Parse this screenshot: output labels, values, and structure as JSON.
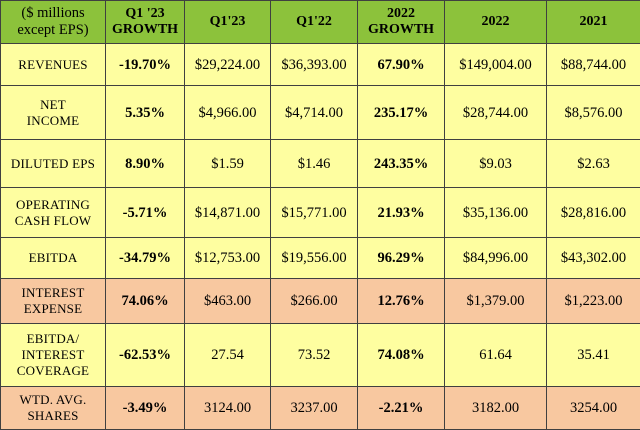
{
  "header": {
    "label_line1": "($ millions",
    "label_line2": "except EPS)",
    "columns": [
      {
        "line1": "Q1 '23",
        "line2": "GROWTH"
      },
      {
        "line1": "Q1'23",
        "line2": ""
      },
      {
        "line1": "Q1'22",
        "line2": ""
      },
      {
        "line1": "2022",
        "line2": "GROWTH"
      },
      {
        "line1": "2022",
        "line2": ""
      },
      {
        "line1": "2021",
        "line2": ""
      }
    ]
  },
  "rows": [
    {
      "label1": "REVENUES",
      "label2": "",
      "q1_23_growth": "-19.70%",
      "q1_23": "$29,224.00",
      "q1_22": "$36,393.00",
      "g2022": "67.90%",
      "y2022": "$149,004.00",
      "y2021": "$88,744.00",
      "color": "yellow"
    },
    {
      "label1": "NET",
      "label2": "INCOME",
      "q1_23_growth": "5.35%",
      "q1_23": "$4,966.00",
      "q1_22": "$4,714.00",
      "g2022": "235.17%",
      "y2022": "$28,744.00",
      "y2021": "$8,576.00",
      "color": "yellow"
    },
    {
      "label1": "DILUTED EPS",
      "label2": "",
      "q1_23_growth": "8.90%",
      "q1_23": "$1.59",
      "q1_22": "$1.46",
      "g2022": "243.35%",
      "y2022": "$9.03",
      "y2021": "$2.63",
      "color": "yellow"
    },
    {
      "label1": "OPERATING",
      "label2": "CASH FLOW",
      "q1_23_growth": "-5.71%",
      "q1_23": "$14,871.00",
      "q1_22": "$15,771.00",
      "g2022": "21.93%",
      "y2022": "$35,136.00",
      "y2021": "$28,816.00",
      "color": "yellow"
    },
    {
      "label1": "EBITDA",
      "label2": "",
      "q1_23_growth": "-34.79%",
      "q1_23": "$12,753.00",
      "q1_22": "$19,556.00",
      "g2022": "96.29%",
      "y2022": "$84,996.00",
      "y2021": "$43,302.00",
      "color": "yellow"
    },
    {
      "label1": "INTEREST",
      "label2": "EXPENSE",
      "q1_23_growth": "74.06%",
      "q1_23": "$463.00",
      "q1_22": "$266.00",
      "g2022": "12.76%",
      "y2022": "$1,379.00",
      "y2021": "$1,223.00",
      "color": "peach"
    },
    {
      "label1": "EBITDA/",
      "label2": "INTEREST",
      "label3": "COVERAGE",
      "q1_23_growth": "-62.53%",
      "q1_23": "27.54",
      "q1_22": "73.52",
      "g2022": "74.08%",
      "y2022": "61.64",
      "y2021": "35.41",
      "color": "yellow"
    },
    {
      "label1": "WTD. AVG.",
      "label2": "SHARES",
      "q1_23_growth": "-3.49%",
      "q1_23": "3124.00",
      "q1_22": "3237.00",
      "g2022": "-2.21%",
      "y2022": "3182.00",
      "y2021": "3254.00",
      "color": "peach"
    }
  ]
}
